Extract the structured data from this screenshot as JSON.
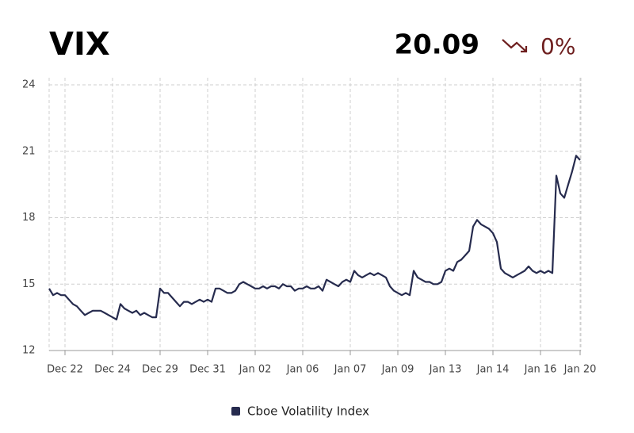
{
  "chart_data": {
    "type": "line",
    "title": "VIX",
    "price": 20.09,
    "change": "0%",
    "categories": [
      null,
      null,
      null,
      null,
      "Dec 22",
      null,
      null,
      null,
      null,
      null,
      null,
      null,
      null,
      null,
      null,
      null,
      "Dec 24",
      null,
      null,
      null,
      null,
      null,
      null,
      null,
      null,
      null,
      null,
      null,
      "Dec 29",
      null,
      null,
      null,
      null,
      null,
      null,
      null,
      null,
      null,
      null,
      null,
      "Dec 31",
      null,
      null,
      null,
      null,
      null,
      null,
      null,
      null,
      null,
      null,
      null,
      "Jan 02",
      null,
      null,
      null,
      null,
      null,
      null,
      null,
      null,
      null,
      null,
      null,
      "Jan 06",
      null,
      null,
      null,
      null,
      null,
      null,
      null,
      null,
      null,
      null,
      null,
      "Jan 07",
      null,
      null,
      null,
      null,
      null,
      null,
      null,
      null,
      null,
      null,
      null,
      "Jan 09",
      null,
      null,
      null,
      null,
      null,
      null,
      null,
      null,
      null,
      null,
      null,
      "Jan 13",
      null,
      null,
      null,
      null,
      null,
      null,
      null,
      null,
      null,
      null,
      null,
      "Jan 14",
      null,
      null,
      null,
      null,
      null,
      null,
      null,
      null,
      null,
      null,
      null,
      "Jan 16",
      null,
      null,
      null,
      null,
      null,
      null,
      null,
      null,
      null,
      "Jan 20"
    ],
    "series": [
      {
        "name": "Cboe Volatility Index",
        "color": "#262b4e",
        "values": [
          14.8,
          14.5,
          14.6,
          14.5,
          14.5,
          14.3,
          14.1,
          14.0,
          13.8,
          13.6,
          13.7,
          13.8,
          13.8,
          13.8,
          13.7,
          13.6,
          13.5,
          13.4,
          14.1,
          13.9,
          13.8,
          13.7,
          13.8,
          13.6,
          13.7,
          13.6,
          13.5,
          13.5,
          14.8,
          14.6,
          14.6,
          14.4,
          14.2,
          14.0,
          14.2,
          14.2,
          14.1,
          14.2,
          14.3,
          14.2,
          14.3,
          14.2,
          14.8,
          14.8,
          14.7,
          14.6,
          14.6,
          14.7,
          15.0,
          15.1,
          15.0,
          14.9,
          14.8,
          14.8,
          14.9,
          14.8,
          14.9,
          14.9,
          14.8,
          15.0,
          14.9,
          14.9,
          14.7,
          14.8,
          14.8,
          14.9,
          14.8,
          14.8,
          14.9,
          14.7,
          15.2,
          15.1,
          15.0,
          14.9,
          15.1,
          15.2,
          15.1,
          15.6,
          15.4,
          15.3,
          15.4,
          15.5,
          15.4,
          15.5,
          15.4,
          15.3,
          14.9,
          14.7,
          14.6,
          14.5,
          14.6,
          14.5,
          15.6,
          15.3,
          15.2,
          15.1,
          15.1,
          15.0,
          15.0,
          15.1,
          15.6,
          15.7,
          15.6,
          16.0,
          16.1,
          16.3,
          16.5,
          17.6,
          17.9,
          17.7,
          17.6,
          17.5,
          17.3,
          16.9,
          15.7,
          15.5,
          15.4,
          15.3,
          15.4,
          15.5,
          15.6,
          15.8,
          15.6,
          15.5,
          15.6,
          15.5,
          15.6,
          15.5,
          19.9,
          19.1,
          18.9,
          19.5,
          20.1,
          20.8,
          20.6
        ]
      }
    ],
    "ylim": [
      12,
      24
    ],
    "yticks": [
      12,
      15,
      18,
      21,
      24
    ],
    "grid": true,
    "change_color": "#6e1f1f"
  }
}
